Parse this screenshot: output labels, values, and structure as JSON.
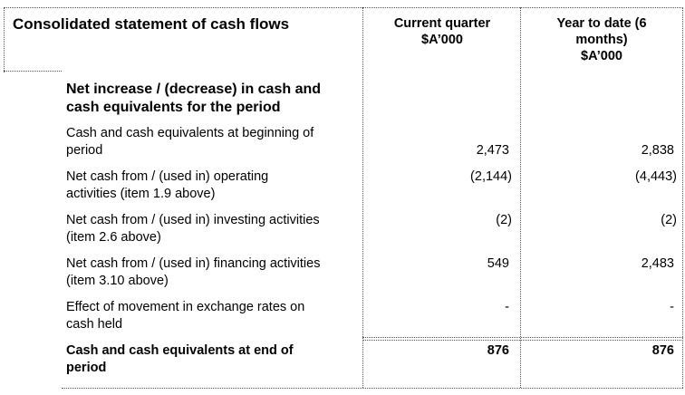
{
  "header": {
    "title": "Consolidated statement of cash flows",
    "col1": [
      "Current quarter",
      "$A’000"
    ],
    "col2": [
      "Year to date (6",
      "months)",
      "$A’000"
    ]
  },
  "section_title": [
    "Net increase / (decrease) in cash and",
    "cash equivalents for the period"
  ],
  "rows": [
    {
      "label": [
        "Cash and cash equivalents at beginning of",
        "period"
      ],
      "current": "2,473",
      "ytd": "2,838"
    },
    {
      "label": [
        "Net cash from / (used in) operating",
        "activities (item 1.9 above)"
      ],
      "current": "(2,144)",
      "ytd": "(4,443)"
    },
    {
      "label": [
        "Net cash from / (used in) investing activities",
        "(item 2.6 above)"
      ],
      "current": "(2)",
      "ytd": "(2)"
    },
    {
      "label": [
        "Net cash from / (used in) financing activities",
        "(item 3.10 above)"
      ],
      "current": "549",
      "ytd": "2,483"
    },
    {
      "label": [
        "Effect of movement in exchange rates on",
        "cash held"
      ],
      "current": "-",
      "ytd": "-"
    },
    {
      "label": [
        "Cash and cash equivalents at end of",
        "period"
      ],
      "current": "876",
      "ytd": "876",
      "bold": true
    }
  ]
}
